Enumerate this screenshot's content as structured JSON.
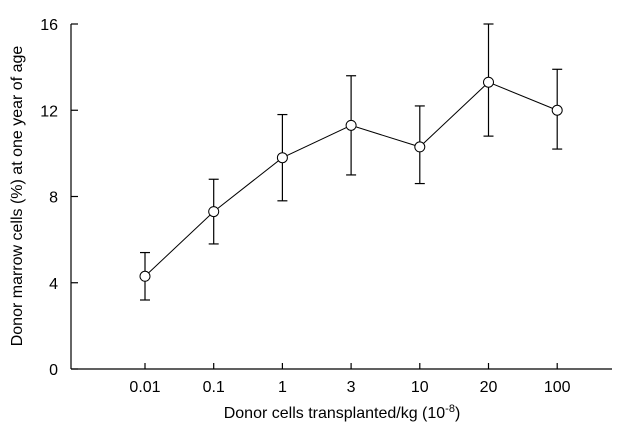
{
  "chart_data": {
    "type": "line",
    "categories": [
      "0.01",
      "0.1",
      "1",
      "3",
      "10",
      "20",
      "100"
    ],
    "series": [
      {
        "values": [
          4.3,
          7.3,
          9.8,
          11.3,
          10.3,
          13.3,
          12.0
        ],
        "error_low": [
          3.2,
          5.8,
          7.8,
          9.0,
          8.6,
          10.8,
          10.2
        ],
        "error_high": [
          5.4,
          8.8,
          11.8,
          13.6,
          12.2,
          16.0,
          13.9
        ]
      }
    ],
    "xlabel": "Donor cells transplanted/kg (10",
    "xlabel_sup": "-8",
    "xlabel_end": ")",
    "ylabel": "Donor marrow cells (%) at one year of age",
    "ylim": [
      0,
      16
    ],
    "yticks": [
      0,
      4,
      8,
      12,
      16
    ],
    "grid": false,
    "marker": "open-circle",
    "colors": {
      "line": "#000000",
      "marker_fill": "#ffffff"
    }
  }
}
